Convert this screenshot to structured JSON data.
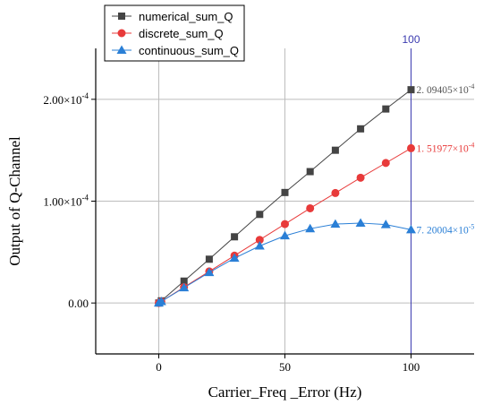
{
  "chart_data": {
    "type": "line",
    "xlabel": "Carrier_Freq _Error (Hz)",
    "ylabel": "Output of Q-Channel",
    "xlim": [
      -25,
      125
    ],
    "ylim": [
      -5e-05,
      0.00025
    ],
    "x_ticks": [
      0,
      50,
      100
    ],
    "y_ticks": [
      {
        "value": 0,
        "label": "0.00"
      },
      {
        "value": 0.0001,
        "label": "1.00×10",
        "exp": "-4"
      },
      {
        "value": 0.0002,
        "label": "2.00×10",
        "exp": "-4"
      }
    ],
    "grid": true,
    "legend_position": "top-left",
    "x": [
      0,
      1,
      10,
      20,
      30,
      40,
      50,
      60,
      70,
      80,
      90,
      100
    ],
    "series": [
      {
        "name": "numerical_sum_Q",
        "color": "#444444",
        "marker": "square",
        "values": [
          0,
          2.1e-06,
          2.15e-05,
          4.3e-05,
          6.5e-05,
          8.7e-05,
          0.0001085,
          0.000129,
          0.00015,
          0.000171,
          0.0001905,
          0.000209405
        ]
      },
      {
        "name": "discrete_sum_Q",
        "color": "#e83a3a",
        "marker": "circle",
        "values": [
          0,
          1.5e-06,
          1.55e-05,
          3.1e-05,
          4.65e-05,
          6.2e-05,
          7.75e-05,
          9.3e-05,
          0.000108,
          0.000123,
          0.0001375,
          0.000151977
        ]
      },
      {
        "name": "continuous_sum_Q",
        "color": "#2a7fd6",
        "marker": "triangle",
        "values": [
          0,
          1.5e-06,
          1.5e-05,
          3e-05,
          4.4e-05,
          5.6e-05,
          6.6e-05,
          7.3e-05,
          7.75e-05,
          7.85e-05,
          7.7e-05,
          7.20004e-05
        ]
      }
    ],
    "annotations": [
      {
        "text": "2. 09405×10",
        "exp": "-4",
        "x": 100,
        "y": 0.000209405,
        "color": "#555555"
      },
      {
        "text": "1. 51977×10",
        "exp": "-4",
        "x": 100,
        "y": 0.000151977,
        "color": "#e83a3a"
      },
      {
        "text": "7. 20004×10",
        "exp": "-5",
        "x": 100,
        "y": 7.20004e-05,
        "color": "#2a7fd6"
      }
    ],
    "vertical_marker": {
      "x": 100,
      "label": "100",
      "color": "#3b3bb0"
    }
  }
}
